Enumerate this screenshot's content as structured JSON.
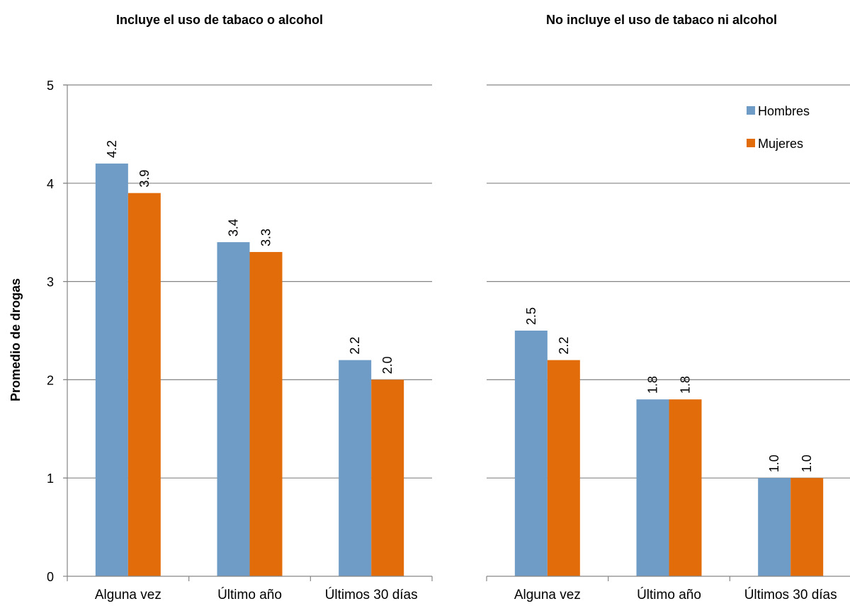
{
  "chart_data": [
    {
      "type": "bar",
      "title": "Incluye el uso de tabaco o alcohol",
      "ylabel": "Promedio de drogas",
      "xlabel": "",
      "categories": [
        "Alguna vez",
        "Último año",
        "Últimos 30 días"
      ],
      "series": [
        {
          "name": "Hombres",
          "values": [
            4.2,
            3.4,
            2.2
          ],
          "labels": [
            "4.2",
            "3.4",
            "2.2"
          ]
        },
        {
          "name": "Mujeres",
          "values": [
            3.9,
            3.3,
            2.0
          ],
          "labels": [
            "3.9",
            "3.3",
            "2.0"
          ]
        }
      ],
      "ylim": [
        0,
        5
      ],
      "yticks": [
        "0",
        "1",
        "2",
        "3",
        "4",
        "5"
      ],
      "grid": true
    },
    {
      "type": "bar",
      "title": "No incluye el uso de tabaco ni alcohol",
      "ylabel": "",
      "xlabel": "",
      "categories": [
        "Alguna vez",
        "Último año",
        "Últimos 30 días"
      ],
      "series": [
        {
          "name": "Hombres",
          "values": [
            2.5,
            1.8,
            1.0
          ],
          "labels": [
            "2.5",
            "1.8",
            "1.0"
          ]
        },
        {
          "name": "Mujeres",
          "values": [
            2.2,
            1.8,
            1.0
          ],
          "labels": [
            "2.2",
            "1.8",
            "1.0"
          ]
        }
      ],
      "ylim": [
        0,
        5
      ],
      "grid": true,
      "legend": "top-right"
    }
  ],
  "colors": {
    "Hombres": "#6f9cc6",
    "Mujeres": "#e36c0a",
    "grid": "#868686",
    "axis": "#868686"
  },
  "legend": {
    "items": [
      "Hombres",
      "Mujeres"
    ]
  }
}
